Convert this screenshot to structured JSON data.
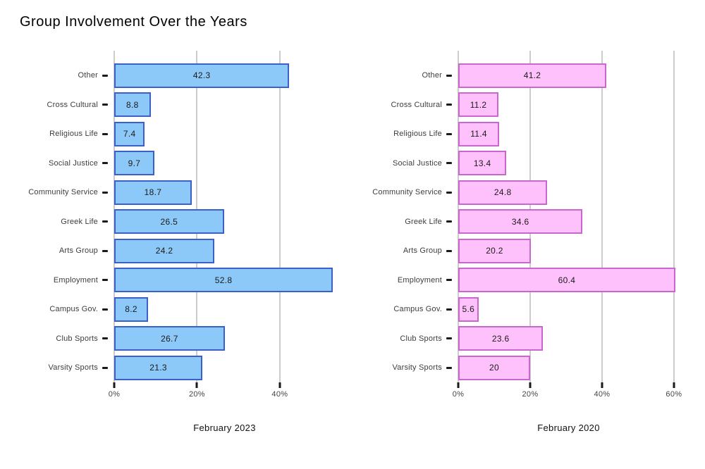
{
  "title": "Group Involvement Over the Years",
  "style": {
    "grid_color": "#cccccc",
    "tick_color": "#1a1a1a"
  },
  "chart_data": [
    {
      "type": "bar",
      "orientation": "horizontal",
      "xlabel": "February 2023",
      "categories": [
        "Other",
        "Cross Cultural",
        "Religious Life",
        "Social Justice",
        "Community Service",
        "Greek Life",
        "Arts Group",
        "Employment",
        "Campus Gov.",
        "Club Sports",
        "Varsity Sports"
      ],
      "values": [
        42.3,
        8.8,
        7.4,
        9.7,
        18.7,
        26.5,
        24.2,
        52.8,
        8.2,
        26.7,
        21.3
      ],
      "xlim": [
        0,
        53.3
      ],
      "x_ticks": [
        {
          "value": 0,
          "label": "0%"
        },
        {
          "value": 20,
          "label": "20%"
        },
        {
          "value": 40,
          "label": "40%"
        }
      ],
      "grid": true,
      "legend": "none",
      "colors": {
        "fill": "#8dc9f8",
        "border": "#3b61c9"
      }
    },
    {
      "type": "bar",
      "orientation": "horizontal",
      "xlabel": "February 2020",
      "categories": [
        "Other",
        "Cross Cultural",
        "Religious Life",
        "Social Justice",
        "Community Service",
        "Greek Life",
        "Arts Group",
        "Employment",
        "Campus Gov.",
        "Club Sports",
        "Varsity Sports"
      ],
      "values": [
        41.2,
        11.2,
        11.4,
        13.4,
        24.8,
        34.6,
        20.2,
        60.4,
        5.6,
        23.6,
        20
      ],
      "xlim": [
        0,
        61.4
      ],
      "x_ticks": [
        {
          "value": 0,
          "label": "0%"
        },
        {
          "value": 20,
          "label": "20%"
        },
        {
          "value": 40,
          "label": "40%"
        },
        {
          "value": 60,
          "label": "60%"
        }
      ],
      "grid": true,
      "legend": "none",
      "colors": {
        "fill": "#fec1fb",
        "border": "#c867cc"
      }
    }
  ]
}
